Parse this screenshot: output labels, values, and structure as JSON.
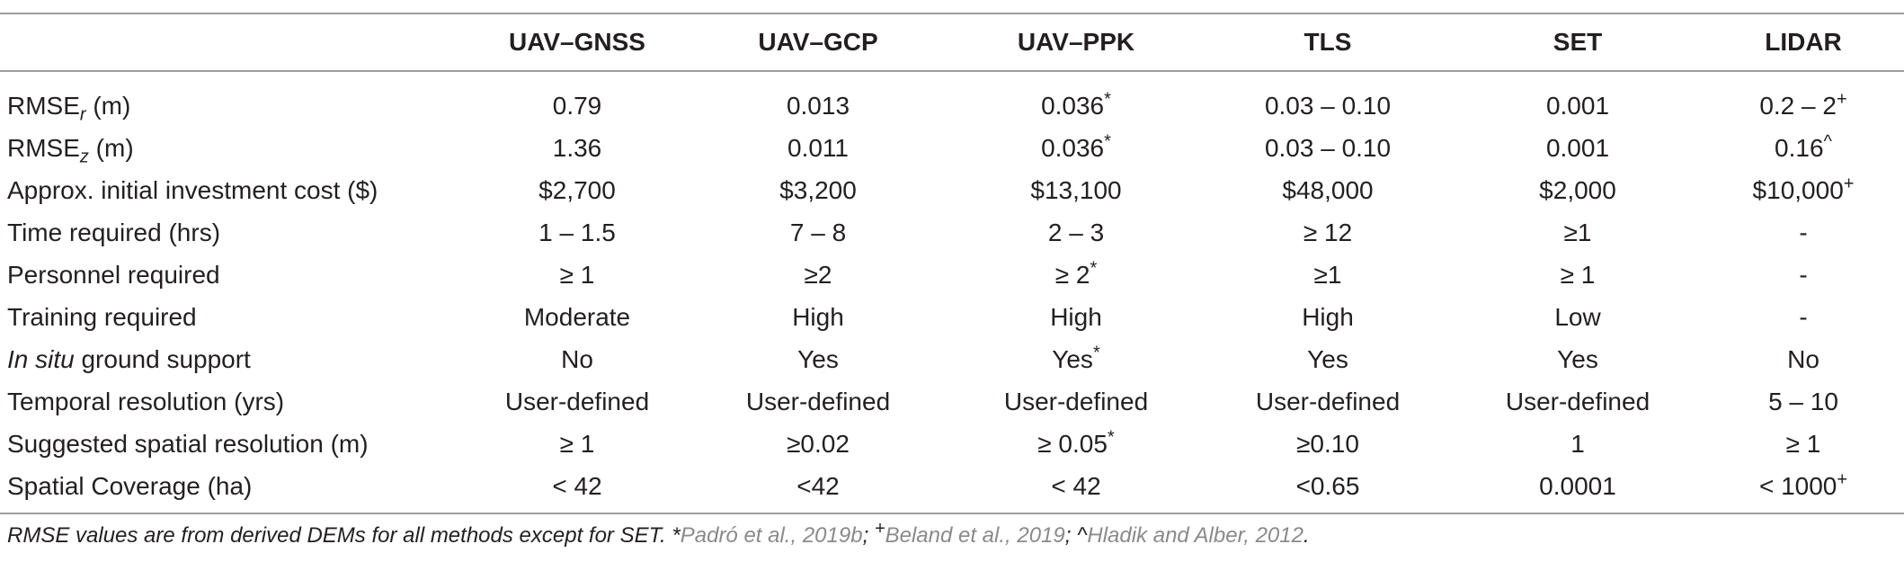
{
  "table": {
    "headers": [
      "",
      "UAV–GNSS",
      "UAV–GCP",
      "UAV–PPK",
      "TLS",
      "SET",
      "LIDAR"
    ],
    "rows": [
      {
        "label": "RMSE",
        "label_sub": "r",
        "label_suffix": " (m)",
        "cells": [
          {
            "value": "0.79"
          },
          {
            "value": "0.013"
          },
          {
            "value": "0.036",
            "sup": "*"
          },
          {
            "value": "0.03 – 0.10"
          },
          {
            "value": "0.001"
          },
          {
            "value": "0.2 – 2",
            "sup": "+"
          }
        ]
      },
      {
        "label": "RMSE",
        "label_sub": "z",
        "label_suffix": " (m)",
        "cells": [
          {
            "value": "1.36"
          },
          {
            "value": "0.011"
          },
          {
            "value": "0.036",
            "sup": "*"
          },
          {
            "value": "0.03 – 0.10"
          },
          {
            "value": "0.001"
          },
          {
            "value": "0.16",
            "sup": "^"
          }
        ]
      },
      {
        "label": "Approx. initial investment cost ($)",
        "cells": [
          {
            "value": "$2,700"
          },
          {
            "value": "$3,200"
          },
          {
            "value": "$13,100"
          },
          {
            "value": "$48,000"
          },
          {
            "value": "$2,000"
          },
          {
            "value": "$10,000",
            "sup": "+"
          }
        ]
      },
      {
        "label": "Time required (hrs)",
        "cells": [
          {
            "value": "1 – 1.5"
          },
          {
            "value": "7 – 8"
          },
          {
            "value": "2 – 3"
          },
          {
            "value": "≥ 12"
          },
          {
            "value": "≥1"
          },
          {
            "value": "-"
          }
        ]
      },
      {
        "label": "Personnel required",
        "cells": [
          {
            "value": "≥ 1"
          },
          {
            "value": "≥2"
          },
          {
            "value": "≥ 2",
            "sup": "*"
          },
          {
            "value": "≥1"
          },
          {
            "value": "≥ 1"
          },
          {
            "value": "-"
          }
        ]
      },
      {
        "label": "Training required",
        "cells": [
          {
            "value": "Moderate"
          },
          {
            "value": "High"
          },
          {
            "value": "High"
          },
          {
            "value": "High"
          },
          {
            "value": "Low"
          },
          {
            "value": "-"
          }
        ]
      },
      {
        "label": "In situ",
        "label_italic": true,
        "label_suffix": " ground support",
        "cells": [
          {
            "value": "No"
          },
          {
            "value": "Yes"
          },
          {
            "value": "Yes",
            "sup": "*"
          },
          {
            "value": "Yes"
          },
          {
            "value": "Yes"
          },
          {
            "value": "No"
          }
        ]
      },
      {
        "label": "Temporal resolution (yrs)",
        "cells": [
          {
            "value": "User-defined"
          },
          {
            "value": "User-defined"
          },
          {
            "value": "User-defined"
          },
          {
            "value": "User-defined"
          },
          {
            "value": "User-defined"
          },
          {
            "value": "5 – 10"
          }
        ]
      },
      {
        "label": "Suggested spatial resolution (m)",
        "cells": [
          {
            "value": "≥ 1"
          },
          {
            "value": "≥0.02"
          },
          {
            "value": "≥ 0.05",
            "sup": "*"
          },
          {
            "value": "≥0.10"
          },
          {
            "value": "1"
          },
          {
            "value": "≥ 1"
          }
        ]
      },
      {
        "label": "Spatial Coverage (ha)",
        "cells": [
          {
            "value": "< 42"
          },
          {
            "value": "<42"
          },
          {
            "value": "< 42"
          },
          {
            "value": "<0.65"
          },
          {
            "value": "0.0001"
          },
          {
            "value": "< 1000",
            "sup": "+"
          }
        ]
      }
    ]
  },
  "footnote": {
    "text": "RMSE values are from derived DEMs for all methods except for SET. *",
    "ref1": "Padró et al., 2019b",
    "sep1": "; ",
    "sup_plus": "+",
    "ref2": "Beland et al., 2019",
    "sep2": "; ^",
    "ref3": "Hladik and Alber, 2012",
    "end": "."
  }
}
